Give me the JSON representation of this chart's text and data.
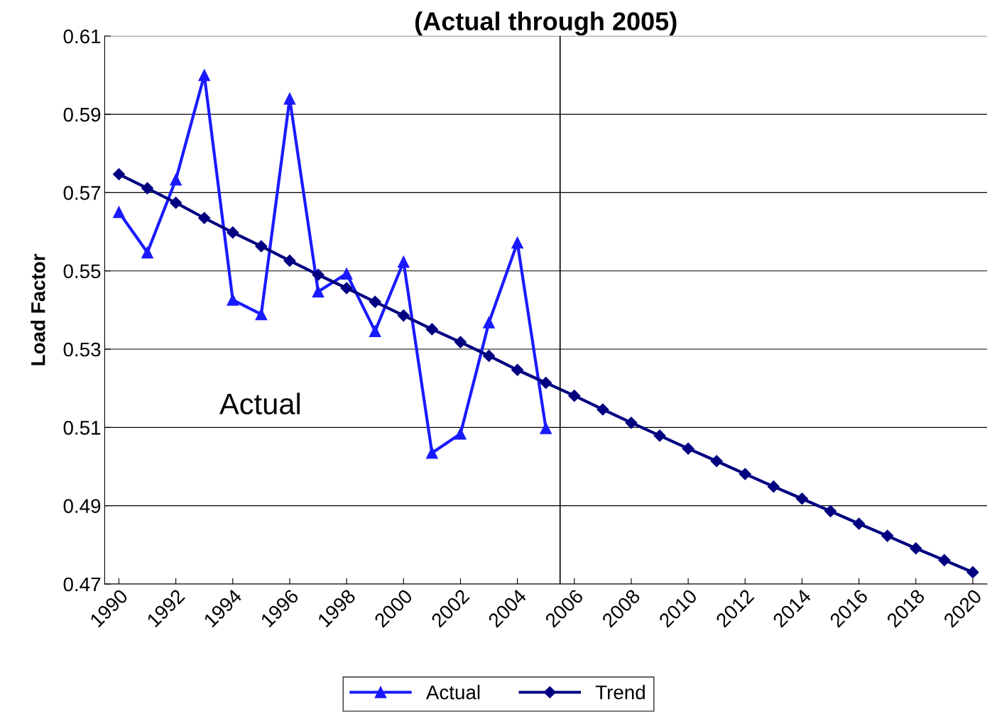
{
  "chart_data": {
    "type": "line",
    "title": "(Actual through 2005)",
    "ylabel": "Load Factor",
    "x": [
      1990,
      1991,
      1992,
      1993,
      1994,
      1995,
      1996,
      1997,
      1998,
      1999,
      2000,
      2001,
      2002,
      2003,
      2004,
      2005,
      2006,
      2007,
      2008,
      2009,
      2010,
      2011,
      2012,
      2013,
      2014,
      2015,
      2016,
      2017,
      2018,
      2019,
      2020
    ],
    "series": [
      {
        "name": "Actual",
        "color": "#1a1aff",
        "marker": "triangle",
        "values": [
          0.565,
          0.5547,
          0.5733,
          0.6,
          0.5426,
          0.5389,
          0.594,
          0.5447,
          0.5493,
          0.5346,
          0.5523,
          0.5035,
          0.5084,
          0.5368,
          0.5572,
          0.5098,
          null,
          null,
          null,
          null,
          null,
          null,
          null,
          null,
          null,
          null,
          null,
          null,
          null,
          null,
          null
        ]
      },
      {
        "name": "Trend",
        "color": "#000080",
        "marker": "diamond",
        "values": [
          0.5747,
          0.5711,
          0.5674,
          0.5635,
          0.5598,
          0.5563,
          0.5526,
          0.549,
          0.5456,
          0.5421,
          0.5386,
          0.5351,
          0.5318,
          0.5283,
          0.5247,
          0.5214,
          0.5181,
          0.5146,
          0.5112,
          0.5079,
          0.5046,
          0.5014,
          0.4981,
          0.4949,
          0.4918,
          0.4886,
          0.4854,
          0.4823,
          0.4791,
          0.4761,
          0.473
        ]
      }
    ],
    "xlim": [
      1989.5,
      2020.5
    ],
    "xticks": [
      1990,
      1992,
      1994,
      1996,
      1998,
      2000,
      2002,
      2004,
      2006,
      2008,
      2010,
      2012,
      2014,
      2016,
      2018,
      2020
    ],
    "ylim": [
      0.47,
      0.61
    ],
    "yticks": [
      0.47,
      0.49,
      0.51,
      0.53,
      0.55,
      0.57,
      0.59,
      0.61
    ],
    "grid": "y",
    "legend": "bottom",
    "line_style": "solid",
    "ref_lines": [
      {
        "axis": "x",
        "value": 2005.5,
        "color": "#000000"
      }
    ],
    "annotations": [
      "Actual"
    ]
  }
}
